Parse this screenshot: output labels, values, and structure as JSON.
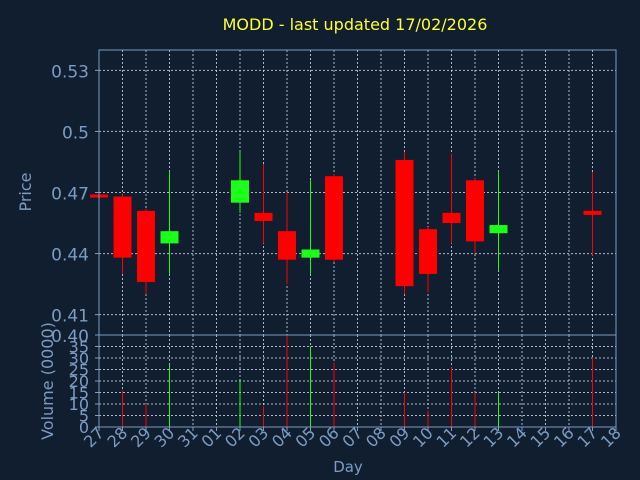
{
  "colors": {
    "background": "#111e2f",
    "title": "#ffff33",
    "axis_text": "#7b9cc4",
    "axis_line": "#7b9cc4",
    "grid": "#c8d4e0",
    "up": "#1aff1a",
    "down": "#ff0000"
  },
  "chart_data": [
    {
      "type": "candlestick",
      "title": "MODD - last updated 17/02/2026",
      "ylabel": "Price",
      "ylim": [
        0.4,
        0.54
      ],
      "yticks": [
        "0.53",
        "0.5",
        "0.47",
        "0.44",
        "0.41",
        "0.40"
      ],
      "ytick_values": [
        0.53,
        0.5,
        0.47,
        0.44,
        0.41,
        0.4
      ],
      "grid": true,
      "x": [
        "27",
        "28",
        "29",
        "30",
        "31",
        "01",
        "02",
        "03",
        "04",
        "05",
        "06",
        "07",
        "08",
        "09",
        "10",
        "11",
        "12",
        "13",
        "14",
        "15",
        "16",
        "17",
        "18"
      ],
      "candles": [
        {
          "x": "27",
          "open": 0.469,
          "close": 0.468,
          "high": 0.47,
          "low": 0.467
        },
        {
          "x": "28",
          "open": 0.468,
          "close": 0.438,
          "high": 0.469,
          "low": 0.43
        },
        {
          "x": "29",
          "open": 0.461,
          "close": 0.426,
          "high": 0.462,
          "low": 0.42
        },
        {
          "x": "30",
          "open": 0.445,
          "close": 0.451,
          "high": 0.48,
          "low": 0.43
        },
        {
          "x": "02",
          "open": 0.465,
          "close": 0.476,
          "high": 0.49,
          "low": 0.46
        },
        {
          "x": "03",
          "open": 0.46,
          "close": 0.456,
          "high": 0.484,
          "low": 0.445
        },
        {
          "x": "04",
          "open": 0.451,
          "close": 0.437,
          "high": 0.47,
          "low": 0.425
        },
        {
          "x": "05",
          "open": 0.438,
          "close": 0.442,
          "high": 0.476,
          "low": 0.43
        },
        {
          "x": "06",
          "open": 0.478,
          "close": 0.437,
          "high": 0.479,
          "low": 0.436
        },
        {
          "x": "09",
          "open": 0.486,
          "close": 0.424,
          "high": 0.49,
          "low": 0.42
        },
        {
          "x": "10",
          "open": 0.452,
          "close": 0.43,
          "high": 0.453,
          "low": 0.421
        },
        {
          "x": "11",
          "open": 0.46,
          "close": 0.455,
          "high": 0.489,
          "low": 0.445
        },
        {
          "x": "12",
          "open": 0.476,
          "close": 0.446,
          "high": 0.477,
          "low": 0.44
        },
        {
          "x": "13",
          "open": 0.45,
          "close": 0.454,
          "high": 0.48,
          "low": 0.432
        },
        {
          "x": "17",
          "open": 0.461,
          "close": 0.459,
          "high": 0.48,
          "low": 0.439
        }
      ]
    },
    {
      "type": "bar",
      "ylabel": "Volume (0000)",
      "xlabel": "Day",
      "ylim": [
        0,
        40
      ],
      "yticks": [
        "35",
        "30",
        "25",
        "20",
        "15",
        "10",
        "5",
        "0"
      ],
      "ytick_values": [
        35,
        30,
        25,
        20,
        15,
        10,
        5,
        0
      ],
      "grid": true,
      "categories": [
        "27",
        "28",
        "29",
        "30",
        "31",
        "01",
        "02",
        "03",
        "04",
        "05",
        "06",
        "07",
        "08",
        "09",
        "10",
        "11",
        "12",
        "13",
        "14",
        "15",
        "16",
        "17",
        "18"
      ],
      "bars": [
        {
          "x": "28",
          "value": 16,
          "direction": "down"
        },
        {
          "x": "29",
          "value": 10,
          "direction": "down"
        },
        {
          "x": "30",
          "value": 27,
          "direction": "up"
        },
        {
          "x": "02",
          "value": 20,
          "direction": "up"
        },
        {
          "x": "03",
          "value": 9,
          "direction": "down"
        },
        {
          "x": "04",
          "value": 40,
          "direction": "down"
        },
        {
          "x": "05",
          "value": 35,
          "direction": "up"
        },
        {
          "x": "06",
          "value": 28,
          "direction": "down"
        },
        {
          "x": "09",
          "value": 15,
          "direction": "down"
        },
        {
          "x": "10",
          "value": 7,
          "direction": "down"
        },
        {
          "x": "11",
          "value": 26,
          "direction": "down"
        },
        {
          "x": "12",
          "value": 15,
          "direction": "down"
        },
        {
          "x": "13",
          "value": 15,
          "direction": "up"
        },
        {
          "x": "17",
          "value": 30,
          "direction": "down"
        }
      ]
    }
  ]
}
